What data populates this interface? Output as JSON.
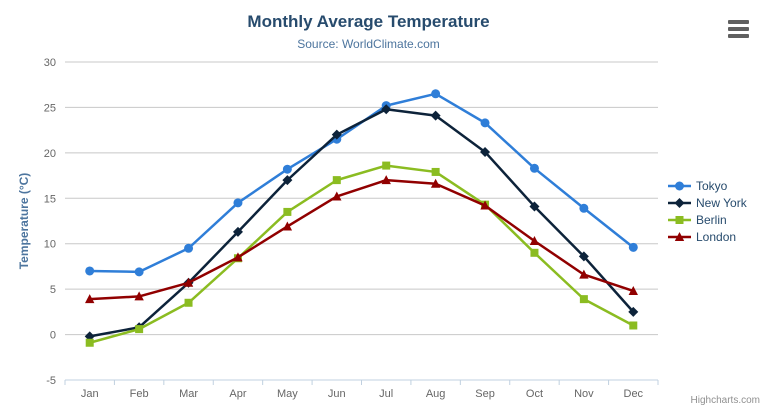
{
  "chart": {
    "credit": "Highcharts.com",
    "context_menu_icon": "hamburger-menu-icon"
  },
  "chart_data": {
    "type": "line",
    "title": "Monthly Average Temperature",
    "subtitle": "Source: WorldClimate.com",
    "categories": [
      "Jan",
      "Feb",
      "Mar",
      "Apr",
      "May",
      "Jun",
      "Jul",
      "Aug",
      "Sep",
      "Oct",
      "Nov",
      "Dec"
    ],
    "series": [
      {
        "name": "Tokyo",
        "color": "#2f7ed8",
        "marker": "circle",
        "values": [
          7.0,
          6.9,
          9.5,
          14.5,
          18.2,
          21.5,
          25.2,
          26.5,
          23.3,
          18.3,
          13.9,
          9.6
        ]
      },
      {
        "name": "New York",
        "color": "#0d233a",
        "marker": "diamond",
        "values": [
          -0.2,
          0.8,
          5.7,
          11.3,
          17.0,
          22.0,
          24.8,
          24.1,
          20.1,
          14.1,
          8.6,
          2.5
        ]
      },
      {
        "name": "Berlin",
        "color": "#8bbc21",
        "marker": "square",
        "values": [
          -0.9,
          0.6,
          3.5,
          8.4,
          13.5,
          17.0,
          18.6,
          17.9,
          14.3,
          9.0,
          3.9,
          1.0
        ]
      },
      {
        "name": "London",
        "color": "#910000",
        "marker": "triangle",
        "values": [
          3.9,
          4.2,
          5.7,
          8.5,
          11.9,
          15.2,
          17.0,
          16.6,
          14.2,
          10.3,
          6.6,
          4.8
        ]
      }
    ],
    "xlabel": "",
    "ylabel": "Temperature (°C)",
    "ylim": [
      -5,
      30
    ],
    "yticks": [
      -5,
      0,
      5,
      10,
      15,
      20,
      25,
      30
    ],
    "grid": true,
    "legend_position": "right-middle",
    "colors": {
      "grid": "#c8c8c8",
      "axis_line": "#c0d0e0",
      "tick_label": "#666666",
      "axis_title": "#4d759e",
      "title": "#274b6d",
      "subtitle": "#4d759e",
      "legend_text": "#274b6d",
      "credit": "#909090",
      "menu_icon": "#606060"
    }
  }
}
